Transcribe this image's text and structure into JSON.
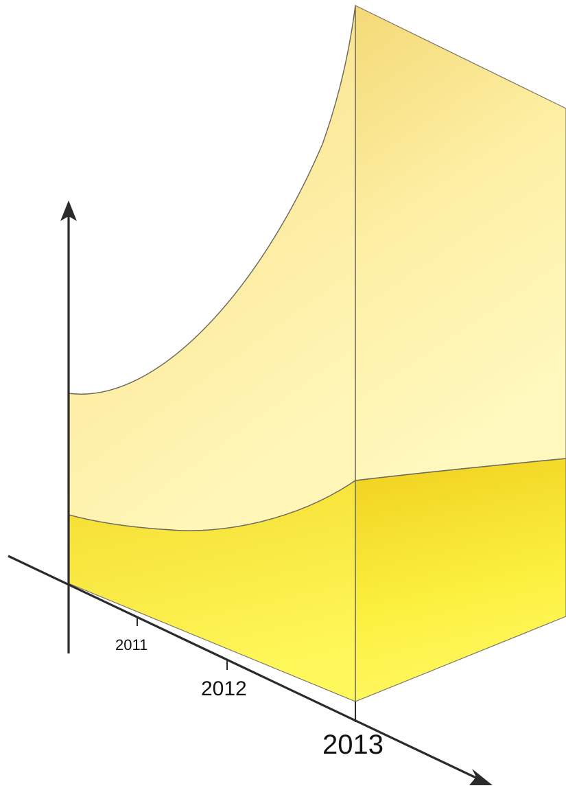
{
  "x_axis": {
    "tick_labels": [
      "2011",
      "2012",
      "2013"
    ]
  },
  "colors": {
    "upper_surface": "#fff4a8",
    "upper_surface_dark": "#f5dc78",
    "lower_band": "#fff54a",
    "lower_band_dark": "#f2d52a",
    "edge": "#7a7466",
    "axis": "#2b2b2b"
  }
}
